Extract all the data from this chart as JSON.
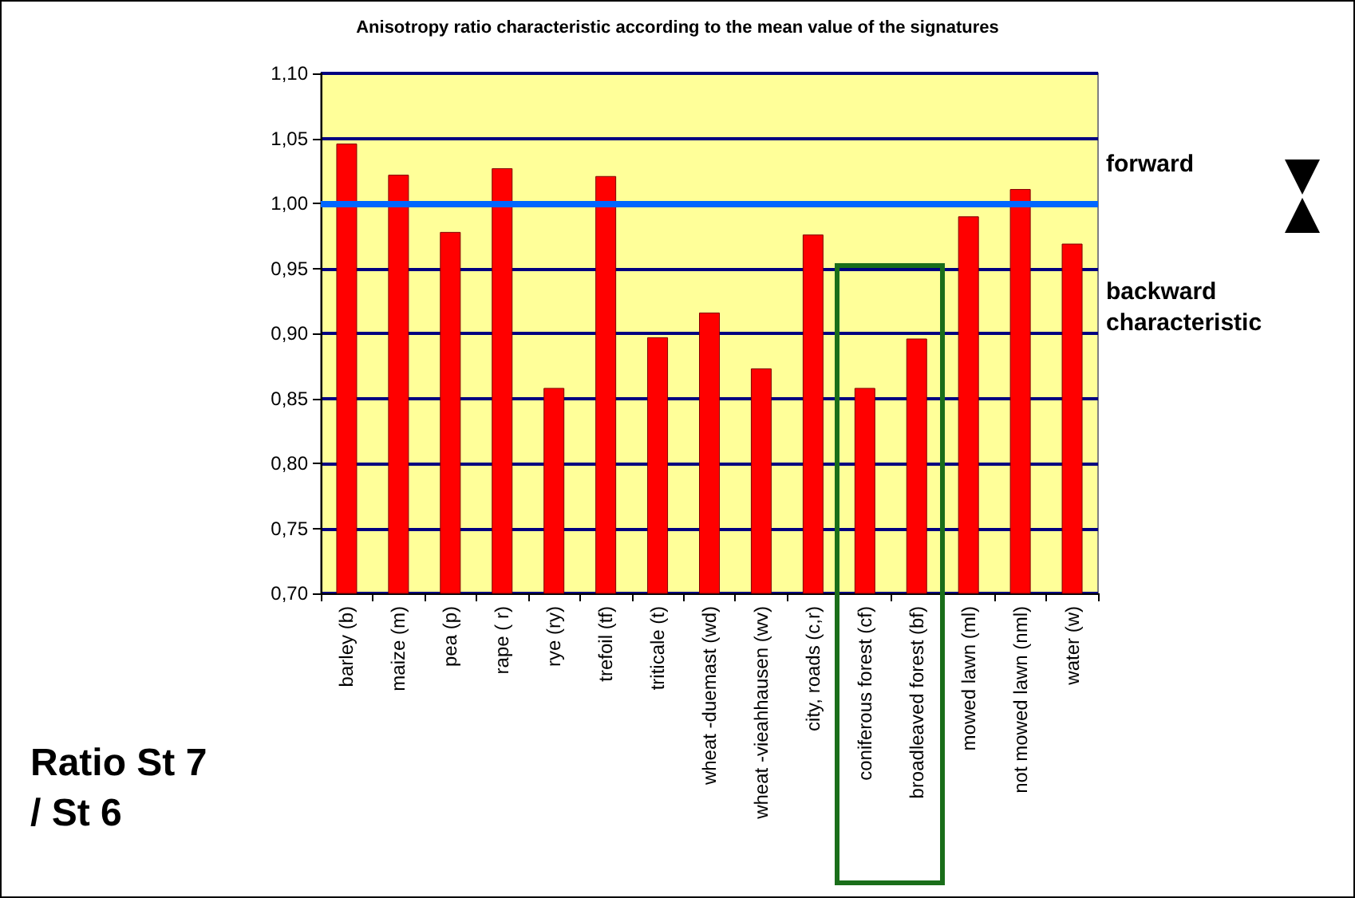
{
  "chart_data": {
    "type": "bar",
    "title": "Anisotropy ratio characteristic according to the mean value of the signatures",
    "categories": [
      "barley (b)",
      "maize (m)",
      "pea (p)",
      "rape ( r)",
      "rye (ry)",
      "trefoil (tf)",
      "triticale (t)",
      "wheat -duemast (wd)",
      "wheat -vieahhausen (wv)",
      "city, roads (c,r)",
      "coniferous forest (cf)",
      "broadleaved forest (bf)",
      "mowed lawn (ml)",
      "not mowed lawn (nml)",
      "water (w)"
    ],
    "values": [
      1.046,
      1.022,
      0.978,
      1.027,
      0.858,
      1.021,
      0.897,
      0.916,
      0.873,
      0.976,
      0.858,
      0.896,
      0.99,
      1.011,
      0.969
    ],
    "color": "#ff0000",
    "ylim": [
      0.7,
      1.1
    ],
    "yticks": [
      {
        "value": 0.7,
        "label": "0,70"
      },
      {
        "value": 0.75,
        "label": "0,75"
      },
      {
        "value": 0.8,
        "label": "0,80"
      },
      {
        "value": 0.85,
        "label": "0,85"
      },
      {
        "value": 0.9,
        "label": "0,90"
      },
      {
        "value": 0.95,
        "label": "0,95"
      },
      {
        "value": 1.0,
        "label": "1,00"
      },
      {
        "value": 1.05,
        "label": "1,05"
      },
      {
        "value": 1.1,
        "label": "1,10"
      }
    ],
    "grid": "y",
    "ref_lines": [
      {
        "axis": "y",
        "value": 1.0,
        "color": "#0066ff"
      }
    ],
    "annotations": [
      "forward",
      "backward characteristic",
      "Ratio St 7 / St 6"
    ]
  }
}
